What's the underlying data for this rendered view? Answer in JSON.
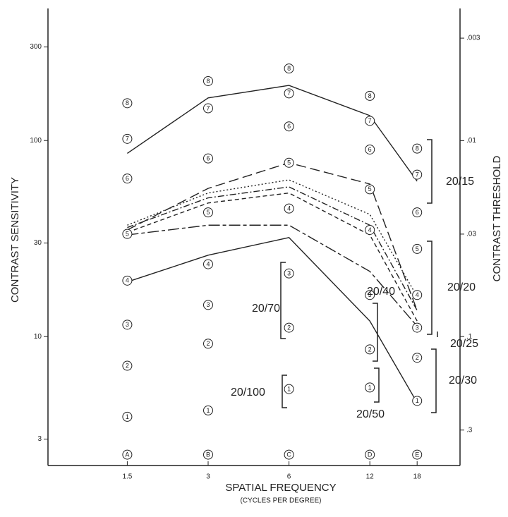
{
  "chart_data": {
    "type": "line",
    "xlabel": "SPATIAL FREQUENCY",
    "xsublabel": "(CYCLES PER DEGREE)",
    "ylabel": "CONTRAST SENSITIVITY",
    "y2label": "CONTRAST THRESHOLD",
    "x": [
      1.5,
      3,
      6,
      12,
      18
    ],
    "xscale": "log",
    "yscale": "log",
    "y2scale": "log",
    "xlim": [
      0.76,
      26
    ],
    "xticks": [
      1.5,
      3,
      6,
      12,
      18
    ],
    "ylim": [
      2.2,
      460
    ],
    "yticks": [
      3,
      10,
      30,
      100,
      300
    ],
    "y2lim": [
      0.455,
      0.00217
    ],
    "y2ticks": [
      {
        "value": 0.003,
        "label": ".003"
      },
      {
        "value": 0.01,
        "label": ".01"
      },
      {
        "value": 0.03,
        "label": ".03"
      },
      {
        "value": 0.1,
        "label": ".1"
      },
      {
        "value": 0.3,
        "label": ".3"
      }
    ],
    "series": [
      {
        "color": "#222",
        "dash": "solid",
        "values": [
          86,
          165,
          191,
          134,
          62
        ]
      },
      {
        "color": "#222",
        "dash": "longdash",
        "values": [
          35,
          57,
          77,
          60,
          13.6
        ]
      },
      {
        "color": "#222",
        "dash": "dotted",
        "values": [
          37,
          54,
          63,
          42,
          16
        ]
      },
      {
        "color": "#222",
        "dash": "dashdot",
        "values": [
          36,
          51,
          58,
          37,
          13.6
        ]
      },
      {
        "color": "#222",
        "dash": "shortdash",
        "values": [
          34,
          48,
          54,
          33,
          12
        ]
      },
      {
        "color": "#222",
        "dash": "longshort",
        "values": [
          33,
          37,
          37,
          21.5,
          11.3
        ]
      },
      {
        "color": "#222",
        "dash": "solid",
        "values": [
          19,
          26,
          32,
          12,
          4.6
        ]
      }
    ],
    "markers": [
      {
        "x": 1.5,
        "y": 155,
        "label": "8"
      },
      {
        "x": 1.5,
        "y": 102,
        "label": "7"
      },
      {
        "x": 1.5,
        "y": 64,
        "label": "6"
      },
      {
        "x": 1.5,
        "y": 33.4,
        "label": "5"
      },
      {
        "x": 1.5,
        "y": 19.3,
        "label": "4"
      },
      {
        "x": 1.5,
        "y": 11.5,
        "label": "3"
      },
      {
        "x": 1.5,
        "y": 7.1,
        "label": "2"
      },
      {
        "x": 1.5,
        "y": 3.9,
        "label": "1"
      },
      {
        "x": 1.5,
        "y": 2.5,
        "label": "A"
      },
      {
        "x": 3,
        "y": 201,
        "label": "8"
      },
      {
        "x": 3,
        "y": 146,
        "label": "7"
      },
      {
        "x": 3,
        "y": 81,
        "label": "6"
      },
      {
        "x": 3,
        "y": 43,
        "label": "5"
      },
      {
        "x": 3,
        "y": 23.4,
        "label": "4"
      },
      {
        "x": 3,
        "y": 14.5,
        "label": "3"
      },
      {
        "x": 3,
        "y": 9.2,
        "label": "2"
      },
      {
        "x": 3,
        "y": 4.2,
        "label": "1"
      },
      {
        "x": 3,
        "y": 2.5,
        "label": "B"
      },
      {
        "x": 6,
        "y": 233,
        "label": "8"
      },
      {
        "x": 6,
        "y": 174,
        "label": "7"
      },
      {
        "x": 6,
        "y": 118,
        "label": "6"
      },
      {
        "x": 6,
        "y": 77,
        "label": "5"
      },
      {
        "x": 6,
        "y": 45,
        "label": "4"
      },
      {
        "x": 6,
        "y": 21,
        "label": "3"
      },
      {
        "x": 6,
        "y": 11.1,
        "label": "2"
      },
      {
        "x": 6,
        "y": 5.4,
        "label": "1"
      },
      {
        "x": 6,
        "y": 2.5,
        "label": "C"
      },
      {
        "x": 12,
        "y": 169,
        "label": "8"
      },
      {
        "x": 12,
        "y": 126,
        "label": "7"
      },
      {
        "x": 12,
        "y": 90,
        "label": "6"
      },
      {
        "x": 12,
        "y": 56.4,
        "label": "5"
      },
      {
        "x": 12,
        "y": 35,
        "label": "4"
      },
      {
        "x": 12,
        "y": 16.3,
        "label": "3"
      },
      {
        "x": 12,
        "y": 8.6,
        "label": "2"
      },
      {
        "x": 12,
        "y": 5.5,
        "label": "1"
      },
      {
        "x": 12,
        "y": 2.5,
        "label": "D"
      },
      {
        "x": 18,
        "y": 91,
        "label": "8"
      },
      {
        "x": 18,
        "y": 67,
        "label": "7"
      },
      {
        "x": 18,
        "y": 43,
        "label": "6"
      },
      {
        "x": 18,
        "y": 28,
        "label": "5"
      },
      {
        "x": 18,
        "y": 16.3,
        "label": "4"
      },
      {
        "x": 18,
        "y": 11.1,
        "label": "3"
      },
      {
        "x": 18,
        "y": 7.8,
        "label": "2"
      },
      {
        "x": 18,
        "y": 4.7,
        "label": "1"
      },
      {
        "x": 18,
        "y": 2.5,
        "label": "E"
      }
    ],
    "annotations": [
      "20/15",
      "20/20",
      "20/25",
      "20/30",
      "20/40",
      "20/50",
      "20/70",
      "20/100"
    ]
  }
}
